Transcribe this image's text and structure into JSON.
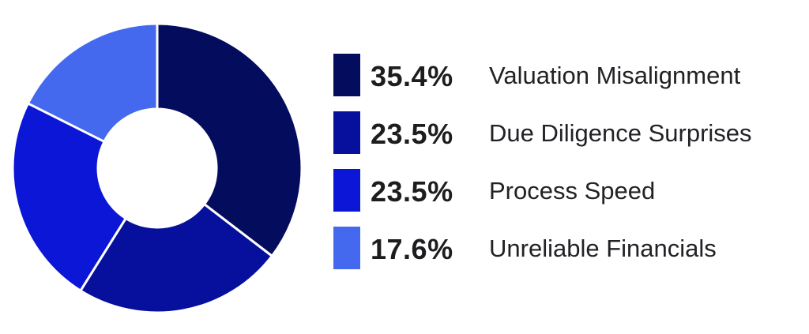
{
  "chart_data": {
    "type": "pie",
    "categories": [
      "Valuation Misalignment",
      "Due Diligence Surprises",
      "Process Speed",
      "Unreliable Financials"
    ],
    "values": [
      35.4,
      23.5,
      23.5,
      17.6
    ],
    "labels": [
      "35.4%",
      "23.5%",
      "23.5%",
      "17.6%"
    ],
    "colors": [
      "#040c5e",
      "#07109c",
      "#0b16d6",
      "#4469ef"
    ],
    "legend_position": "right"
  },
  "legend": [
    {
      "percent": "35.4%",
      "label": "Valuation Misalignment",
      "color": "#040c5e"
    },
    {
      "percent": "23.5%",
      "label": "Due Diligence Surprises",
      "color": "#07109c"
    },
    {
      "percent": "23.5%",
      "label": "Process Speed",
      "color": "#0b16d6"
    },
    {
      "percent": "17.6%",
      "label": "Unreliable Financials",
      "color": "#4469ef"
    }
  ]
}
